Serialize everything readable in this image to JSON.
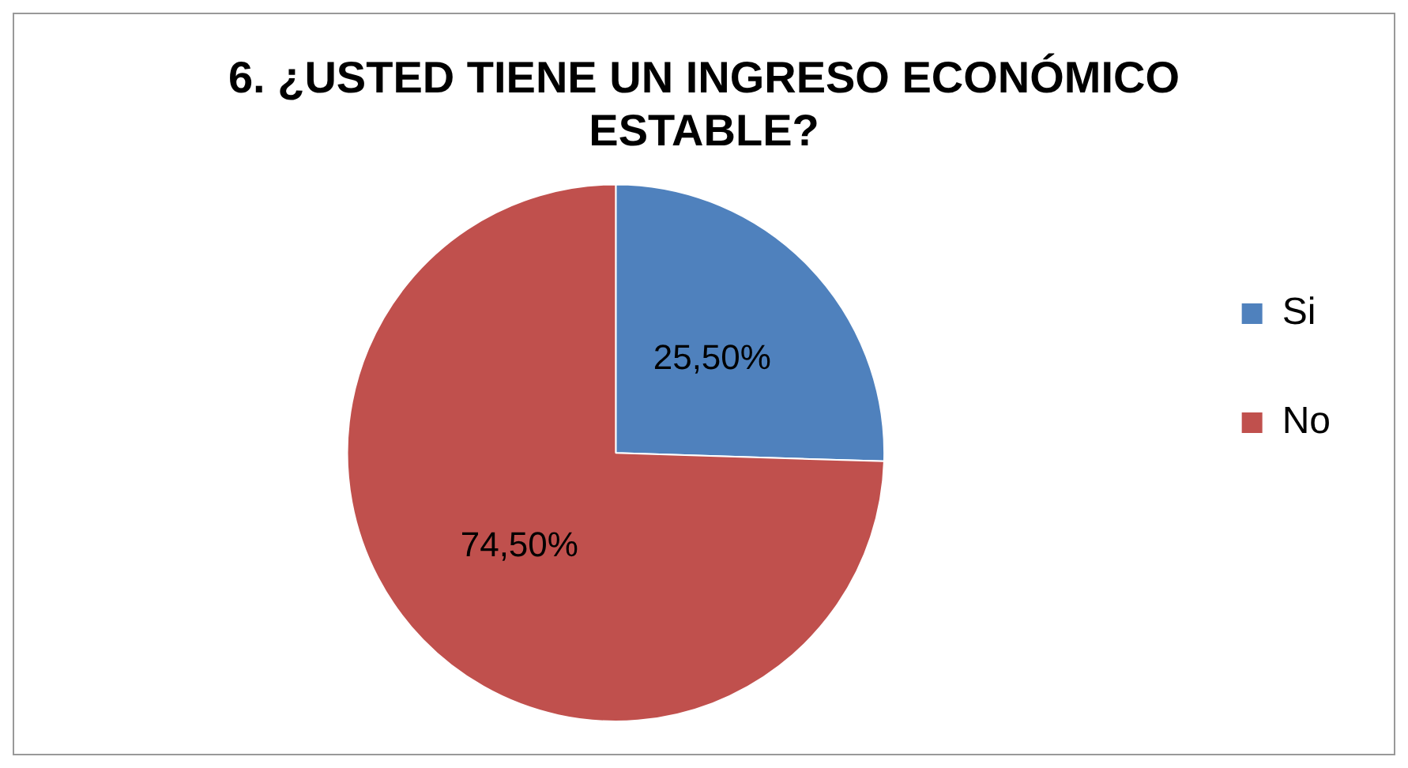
{
  "chart_data": {
    "type": "pie",
    "title": "6. ¿USTED TIENE UN INGRESO ECONÓMICO ESTABLE?",
    "categories": [
      "Si",
      "No"
    ],
    "values": [
      25.5,
      74.5
    ],
    "colors": [
      "#4f81bd",
      "#c0504d"
    ],
    "value_labels": [
      "25,50%",
      "74,50%"
    ],
    "legend": "right"
  }
}
